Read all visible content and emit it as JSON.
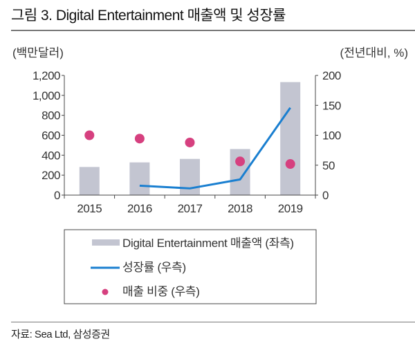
{
  "title": "그림 3.  Digital Entertainment 매출액 및 성장률",
  "source": "자료: Sea Ltd, 삼성증권",
  "chart_data": {
    "type": "bar+line+scatter",
    "title": "그림 3.  Digital Entertainment 매출액 및 성장률",
    "categories": [
      "2015",
      "2016",
      "2017",
      "2018",
      "2019"
    ],
    "left_axis": {
      "label": "(백만달러)",
      "ylim": [
        0,
        1200
      ],
      "ticks": [
        "0",
        "200",
        "400",
        "600",
        "800",
        "1,000",
        "1,200"
      ],
      "tick_values": [
        0,
        200,
        400,
        600,
        800,
        1000,
        1200
      ]
    },
    "right_axis": {
      "label": "(전년대비, %)",
      "ylim": [
        0,
        200
      ],
      "ticks": [
        "0",
        "50",
        "100",
        "150",
        "200"
      ],
      "tick_values": [
        0,
        50,
        100,
        150,
        200
      ]
    },
    "series": [
      {
        "name": "Digital Entertainment 매출액 (좌측)",
        "type": "bar",
        "axis": "left",
        "color": "#c3c5d1",
        "values": [
          282,
          328,
          363,
          462,
          1133
        ]
      },
      {
        "name": "성장률 (우측)",
        "type": "line",
        "axis": "right",
        "color": "#1a7fd0",
        "values": [
          null,
          15.8,
          11.2,
          26.2,
          146
        ]
      },
      {
        "name": "매출 비중 (우측)",
        "type": "scatter",
        "axis": "right",
        "color": "#d6407f",
        "values": [
          100,
          94.4,
          87.9,
          56.3,
          52
        ]
      }
    ],
    "grid": false,
    "legend": "bottom"
  }
}
